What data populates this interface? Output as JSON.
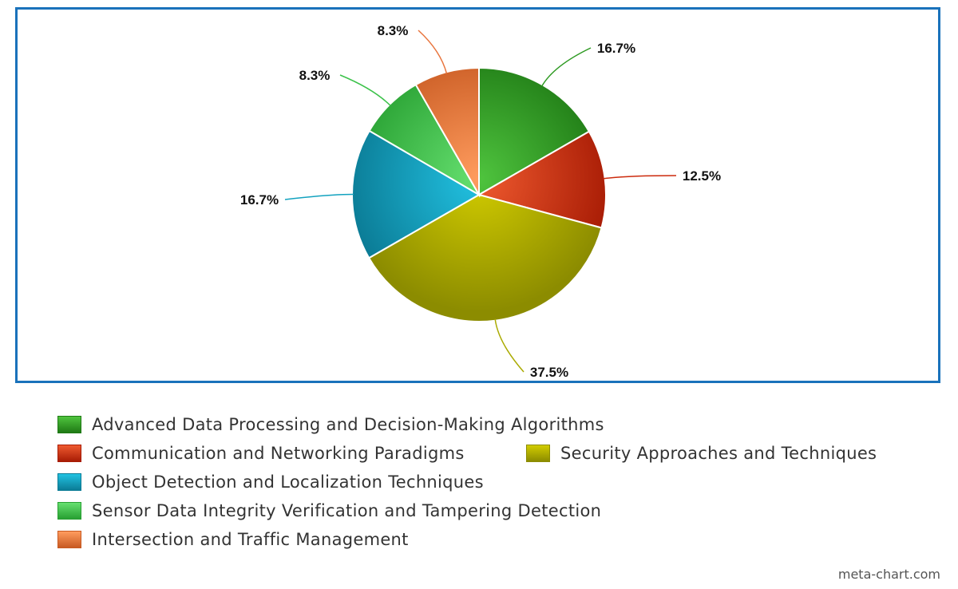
{
  "chart_data": {
    "type": "pie",
    "slices": [
      {
        "label": "Advanced Data Processing and Decision-Making Algorithms",
        "value": 16.7,
        "display": "16.7%",
        "color": "#2e9a22",
        "color_light": "#4fc43e",
        "color_dark": "#1f7a15"
      },
      {
        "label": "Communication and Networking Paradigms",
        "value": 12.5,
        "display": "12.5%",
        "color": "#cc2a0c",
        "color_light": "#ef5a2f",
        "color_dark": "#a81c05"
      },
      {
        "label": "Security Approaches and Techniques",
        "value": 37.5,
        "display": "37.5%",
        "color": "#aaaa00",
        "color_light": "#d2cc00",
        "color_dark": "#8c8c00"
      },
      {
        "label": "Object Detection and Localization Techniques",
        "value": 16.7,
        "display": "16.7%",
        "color": "#12a2bf",
        "color_light": "#22c2e2",
        "color_dark": "#0b7c96"
      },
      {
        "label": "Sensor Data Integrity Verification and Tampering Detection",
        "value": 8.3,
        "display": "8.3%",
        "color": "#3cc24a",
        "color_light": "#66e070",
        "color_dark": "#28a032"
      },
      {
        "label": "Intersection and Traffic Management",
        "value": 8.3,
        "display": "8.3%",
        "color": "#e8743c",
        "color_light": "#ff9c5e",
        "color_dark": "#c85a22"
      }
    ],
    "start_angle_deg": 0,
    "direction": "clockwise",
    "legend_position": "bottom"
  },
  "watermark": "meta-chart.com"
}
